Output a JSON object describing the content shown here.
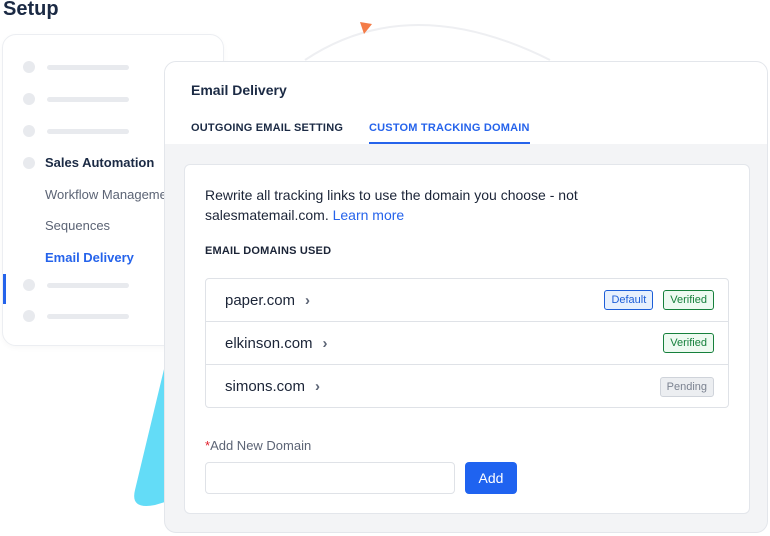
{
  "page": {
    "title": "Setup"
  },
  "sidebar": {
    "section": "Sales Automation",
    "items": [
      {
        "label": "Workflow Management"
      },
      {
        "label": "Sequences"
      },
      {
        "label": "Email Delivery",
        "active": true
      }
    ]
  },
  "panel": {
    "title": "Email Delivery",
    "tabs": [
      {
        "label": "OUTGOING EMAIL SETTING"
      },
      {
        "label": "CUSTOM TRACKING DOMAIN",
        "active": true
      }
    ],
    "description": "Rewrite all tracking links to use the domain you choose - not salesmatemail.com.",
    "learn_more": "Learn more",
    "domains_heading": "EMAIL DOMAINS USED",
    "domains": [
      {
        "name": "paper.com",
        "badges": [
          "Default",
          "Verified"
        ]
      },
      {
        "name": "elkinson.com",
        "badges": [
          "Verified"
        ]
      },
      {
        "name": "simons.com",
        "badges": [
          "Pending"
        ]
      }
    ],
    "add_label": "Add New Domain",
    "required_mark": "*",
    "add_input_value": "",
    "add_button": "Add"
  },
  "colors": {
    "accent": "#2563eb",
    "verified": "#16803c",
    "pending": "#7b8290",
    "decor_cyan": "#63dcf7",
    "decor_orange": "#f47c48"
  }
}
